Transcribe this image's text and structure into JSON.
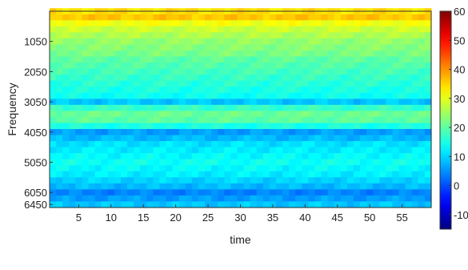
{
  "chart_data": {
    "type": "heatmap",
    "title": "",
    "xlabel": "time",
    "ylabel": "Frequency",
    "x_ticks": [
      5,
      10,
      15,
      20,
      25,
      30,
      35,
      40,
      45,
      50,
      55
    ],
    "x_tick_labels": [
      "5",
      "10",
      "15",
      "20",
      "25",
      "30",
      "35",
      "40",
      "45",
      "50",
      "55"
    ],
    "xlim": [
      0.5,
      59.5
    ],
    "y_ticks": [
      1050,
      2050,
      3050,
      4050,
      5050,
      6050,
      6450
    ],
    "y_tick_labels": [
      "1050",
      "2050",
      "3050",
      "4050",
      "5050",
      "6050",
      "6450"
    ],
    "ylim": [
      50,
      6550
    ],
    "y_direction": "top-to-bottom increasing",
    "colorbar": {
      "range": [
        -15,
        60
      ],
      "ticks": [
        -10,
        0,
        10,
        20,
        30,
        40,
        50,
        60
      ],
      "tick_labels": [
        "-10",
        "0",
        "10",
        "20",
        "30",
        "40",
        "50",
        "60"
      ],
      "colormap": "jet",
      "placement": "right"
    },
    "grid": false,
    "time_columns": 59,
    "frequency_profile": {
      "frequency": [
        50,
        250,
        450,
        650,
        850,
        1050,
        1250,
        1450,
        1650,
        1850,
        2050,
        2250,
        2450,
        2650,
        2850,
        3050,
        3250,
        3450,
        3650,
        3850,
        4050,
        4250,
        4450,
        4650,
        4850,
        5050,
        5250,
        5450,
        5650,
        5850,
        6050,
        6250,
        6450
      ],
      "value": [
        34,
        36,
        31,
        28,
        26,
        24,
        23,
        22,
        20,
        19,
        18,
        17,
        16,
        15,
        14,
        9,
        17,
        21,
        20,
        15,
        6,
        8,
        11,
        12,
        13,
        14,
        13,
        12,
        10,
        8,
        4,
        6,
        9
      ]
    }
  }
}
